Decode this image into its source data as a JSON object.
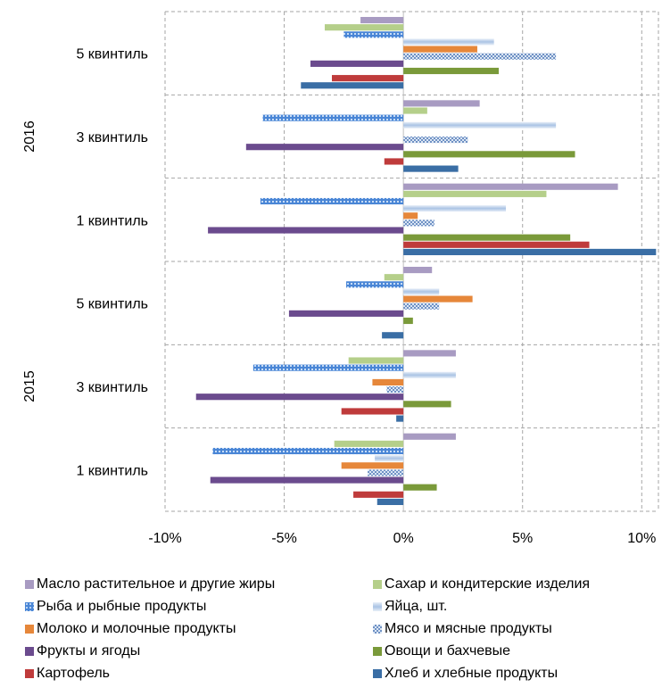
{
  "chart_data": {
    "type": "bar",
    "orientation": "horizontal",
    "xlim": [
      -10,
      10.7
    ],
    "x_ticks": [
      -10,
      -5,
      0,
      5,
      10
    ],
    "x_tick_labels": [
      "-10%",
      "-5%",
      "0%",
      "5%",
      "10%"
    ],
    "grid": "dashed",
    "legend_position": "bottom",
    "groups": [
      {
        "year": "2016",
        "categories": [
          {
            "label": "5 квинтиль",
            "values": [
              -1.8,
              -3.3,
              -2.5,
              3.8,
              3.1,
              6.4,
              -3.9,
              4.0,
              -3.0,
              -4.3
            ]
          },
          {
            "label": "3 квинтиль",
            "values": [
              3.2,
              1.0,
              -5.9,
              6.4,
              0.0,
              2.7,
              -6.6,
              7.2,
              -0.8,
              2.3
            ]
          },
          {
            "label": "1 квинтиль",
            "values": [
              9.0,
              6.0,
              -6.0,
              4.3,
              0.6,
              1.3,
              -8.2,
              7.0,
              7.8,
              10.6
            ]
          }
        ]
      },
      {
        "year": "2015",
        "categories": [
          {
            "label": "5 квинтиль",
            "values": [
              1.2,
              -0.8,
              -2.4,
              1.5,
              2.9,
              1.5,
              -4.8,
              0.4,
              0.0,
              -0.9
            ]
          },
          {
            "label": "3 квинтиль",
            "values": [
              2.2,
              -2.3,
              -6.3,
              2.2,
              -1.3,
              -0.7,
              -8.7,
              2.0,
              -2.6,
              -0.3
            ]
          },
          {
            "label": "1 квинтиль",
            "values": [
              2.2,
              -2.9,
              -8.0,
              -1.2,
              -2.6,
              -1.5,
              -8.1,
              1.4,
              -2.1,
              -1.1
            ]
          }
        ]
      }
    ],
    "series": [
      {
        "name": "Масло растительное и другие жиры",
        "color": "#a89bc2",
        "pattern": "solid"
      },
      {
        "name": "Сахар и кондитерские изделия",
        "color": "#b5cf8a",
        "pattern": "solid"
      },
      {
        "name": "Рыба и рыбные продукты",
        "color": "#4a86d6",
        "pattern": "dots"
      },
      {
        "name": "Яйца, шт.",
        "color": "#c9d9ee",
        "pattern": "gradient"
      },
      {
        "name": "Молоко и молочные продукты",
        "color": "#e6873a",
        "pattern": "solid"
      },
      {
        "name": "Мясо и мясные продукты",
        "color": "#8aa8d2",
        "pattern": "checker"
      },
      {
        "name": "Фрукты и ягоды",
        "color": "#6b4b8e",
        "pattern": "solid"
      },
      {
        "name": "Овощи и бахчевые",
        "color": "#7a9a3a",
        "pattern": "solid"
      },
      {
        "name": "Картофель",
        "color": "#bf3b3b",
        "pattern": "solid"
      },
      {
        "name": "Хлеб и хлебные продукты",
        "color": "#3a6ea5",
        "pattern": "solid"
      }
    ]
  }
}
